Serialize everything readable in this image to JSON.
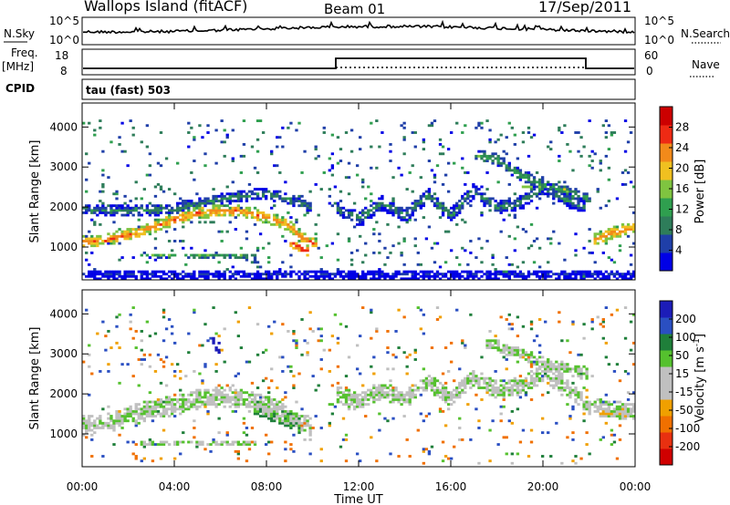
{
  "header": {
    "station": "Wallops Island (fitACF)",
    "beam": "Beam 01",
    "date": "17/Sep/2011"
  },
  "strip": {
    "nsky_label": "N.Sky",
    "nsky_ticks": [
      "10^5",
      "10^0"
    ],
    "nsearch_label": "N.Search",
    "nsearch_ticks": [
      "10^5",
      "10^0"
    ],
    "freq_label": "Freq.",
    "freq_unit": "[MHz]",
    "freq_ticks": [
      "18",
      "8"
    ],
    "nave_label": "Nave",
    "nave_ticks": [
      "60",
      "0"
    ],
    "cpid_label": "CPID",
    "cpid_value": "tau (fast) 503"
  },
  "colors": {
    "power_scale": [
      "#0000e6",
      "#1f3fa8",
      "#2e7d5a",
      "#2f9f4f",
      "#7fc440",
      "#f0c020",
      "#f28a1a",
      "#ee2a14",
      "#cc0000"
    ],
    "velocity_scale": [
      "#1c1cb8",
      "#2a4fc2",
      "#1f7f3a",
      "#55c12e",
      "#c0c0c0",
      "#c0c0c0",
      "#f0a000",
      "#f07000",
      "#e83010",
      "#d00000"
    ]
  },
  "chart_data": [
    {
      "type": "heatmap",
      "name": "power",
      "ylabel": "Slant Range [km]",
      "ylim": [
        180,
        4600
      ],
      "xlim": [
        0,
        24
      ],
      "yticks": [
        1000,
        2000,
        3000,
        4000
      ],
      "colorbar": {
        "label": "Power [dB]",
        "range": [
          0,
          32
        ],
        "ticks": [
          "4",
          "8",
          "12",
          "16",
          "20",
          "24",
          "28"
        ]
      },
      "bands": [
        {
          "t": [
            0,
            1,
            2,
            3,
            4,
            5,
            6,
            7,
            8,
            9,
            9.5,
            10.2
          ],
          "r": [
            1120,
            1180,
            1300,
            1480,
            1700,
            1850,
            1920,
            1900,
            1750,
            1550,
            1250,
            1050
          ],
          "v": 24,
          "w": 150
        },
        {
          "t": [
            0,
            2,
            4,
            6,
            8,
            10
          ],
          "r": [
            1950,
            1900,
            1950,
            2200,
            2350,
            2000
          ],
          "v": 10,
          "w": 140
        },
        {
          "t": [
            2.5,
            4,
            6,
            7.5
          ],
          "r": [
            800,
            790,
            790,
            780
          ],
          "v": 14,
          "w": 60
        },
        {
          "t": [
            9.0,
            9.4,
            9.8
          ],
          "r": [
            1150,
            1000,
            900
          ],
          "v": 28,
          "w": 110
        },
        {
          "t": [
            11,
            12,
            13,
            14,
            15,
            16,
            17,
            18,
            19,
            20,
            21,
            21.8
          ],
          "r": [
            2000,
            1700,
            2100,
            1800,
            2300,
            1800,
            2400,
            2000,
            2100,
            2500,
            2200,
            2000
          ],
          "v": 10,
          "w": 180
        },
        {
          "t": [
            17,
            18,
            19,
            20,
            21,
            22
          ],
          "r": [
            3300,
            3200,
            2800,
            2600,
            2400,
            2200
          ],
          "v": 13,
          "w": 140
        },
        {
          "t": [
            19,
            20,
            21
          ],
          "r": [
            2550,
            2500,
            2450
          ],
          "v": 18,
          "w": 80
        },
        {
          "t": [
            22.2,
            23,
            24
          ],
          "r": [
            1200,
            1350,
            1500
          ],
          "v": 24,
          "w": 150
        },
        {
          "t": [
            0,
            24
          ],
          "r": [
            320,
            320
          ],
          "v": 4,
          "w": 120
        }
      ],
      "speckle": {
        "density": 0.045,
        "range": [
          250,
          4200
        ]
      }
    },
    {
      "type": "heatmap",
      "name": "velocity",
      "ylabel": "Slant Range [km]",
      "xlabel": "Time UT",
      "ylim": [
        180,
        4600
      ],
      "xlim": [
        0,
        24
      ],
      "yticks": [
        1000,
        2000,
        3000,
        4000
      ],
      "xticks": [
        "00:00",
        "04:00",
        "08:00",
        "12:00",
        "16:00",
        "20:00",
        "00:00"
      ],
      "colorbar": {
        "label": "Velocity [m s",
        "label_sup": "-1",
        "label_end": "]",
        "ticks": [
          "200",
          "100",
          "50",
          "15",
          "-15",
          "-50",
          "-100",
          "-200"
        ]
      },
      "bands": [
        {
          "t": [
            0,
            1,
            2,
            3,
            4,
            5,
            6,
            7,
            8,
            9,
            10
          ],
          "r": [
            1200,
            1250,
            1450,
            1600,
            1700,
            1850,
            1950,
            1850,
            1700,
            1450,
            1150
          ],
          "v": 0,
          "w": 250
        },
        {
          "t": [
            2.5,
            4,
            6,
            7.5
          ],
          "r": [
            790,
            780,
            780,
            770
          ],
          "v": 0,
          "w": 60
        },
        {
          "t": [
            7.5,
            8.5,
            9.5
          ],
          "r": [
            1700,
            1450,
            1200
          ],
          "v": 55,
          "w": 200
        },
        {
          "t": [
            11,
            12,
            13,
            14,
            15,
            16,
            17,
            18,
            19,
            20,
            21,
            22,
            23,
            24
          ],
          "r": [
            2000,
            1800,
            2100,
            1850,
            2300,
            1900,
            2400,
            2100,
            2200,
            2500,
            2200,
            1700,
            1600,
            1550
          ],
          "v": 0,
          "w": 220
        },
        {
          "t": [
            17.5,
            19,
            20.5,
            22
          ],
          "r": [
            3300,
            3000,
            2700,
            2500
          ],
          "v": 0,
          "w": 160
        },
        {
          "t": [
            5.6,
            6.0
          ],
          "r": [
            3300,
            3100
          ],
          "v": 200,
          "w": 150
        },
        {
          "t": [
            22.5,
            24
          ],
          "r": [
            1500,
            1550
          ],
          "v": -60,
          "w": 100
        }
      ],
      "speckle": {
        "density": 0.04,
        "range": [
          250,
          4200
        ]
      }
    }
  ]
}
